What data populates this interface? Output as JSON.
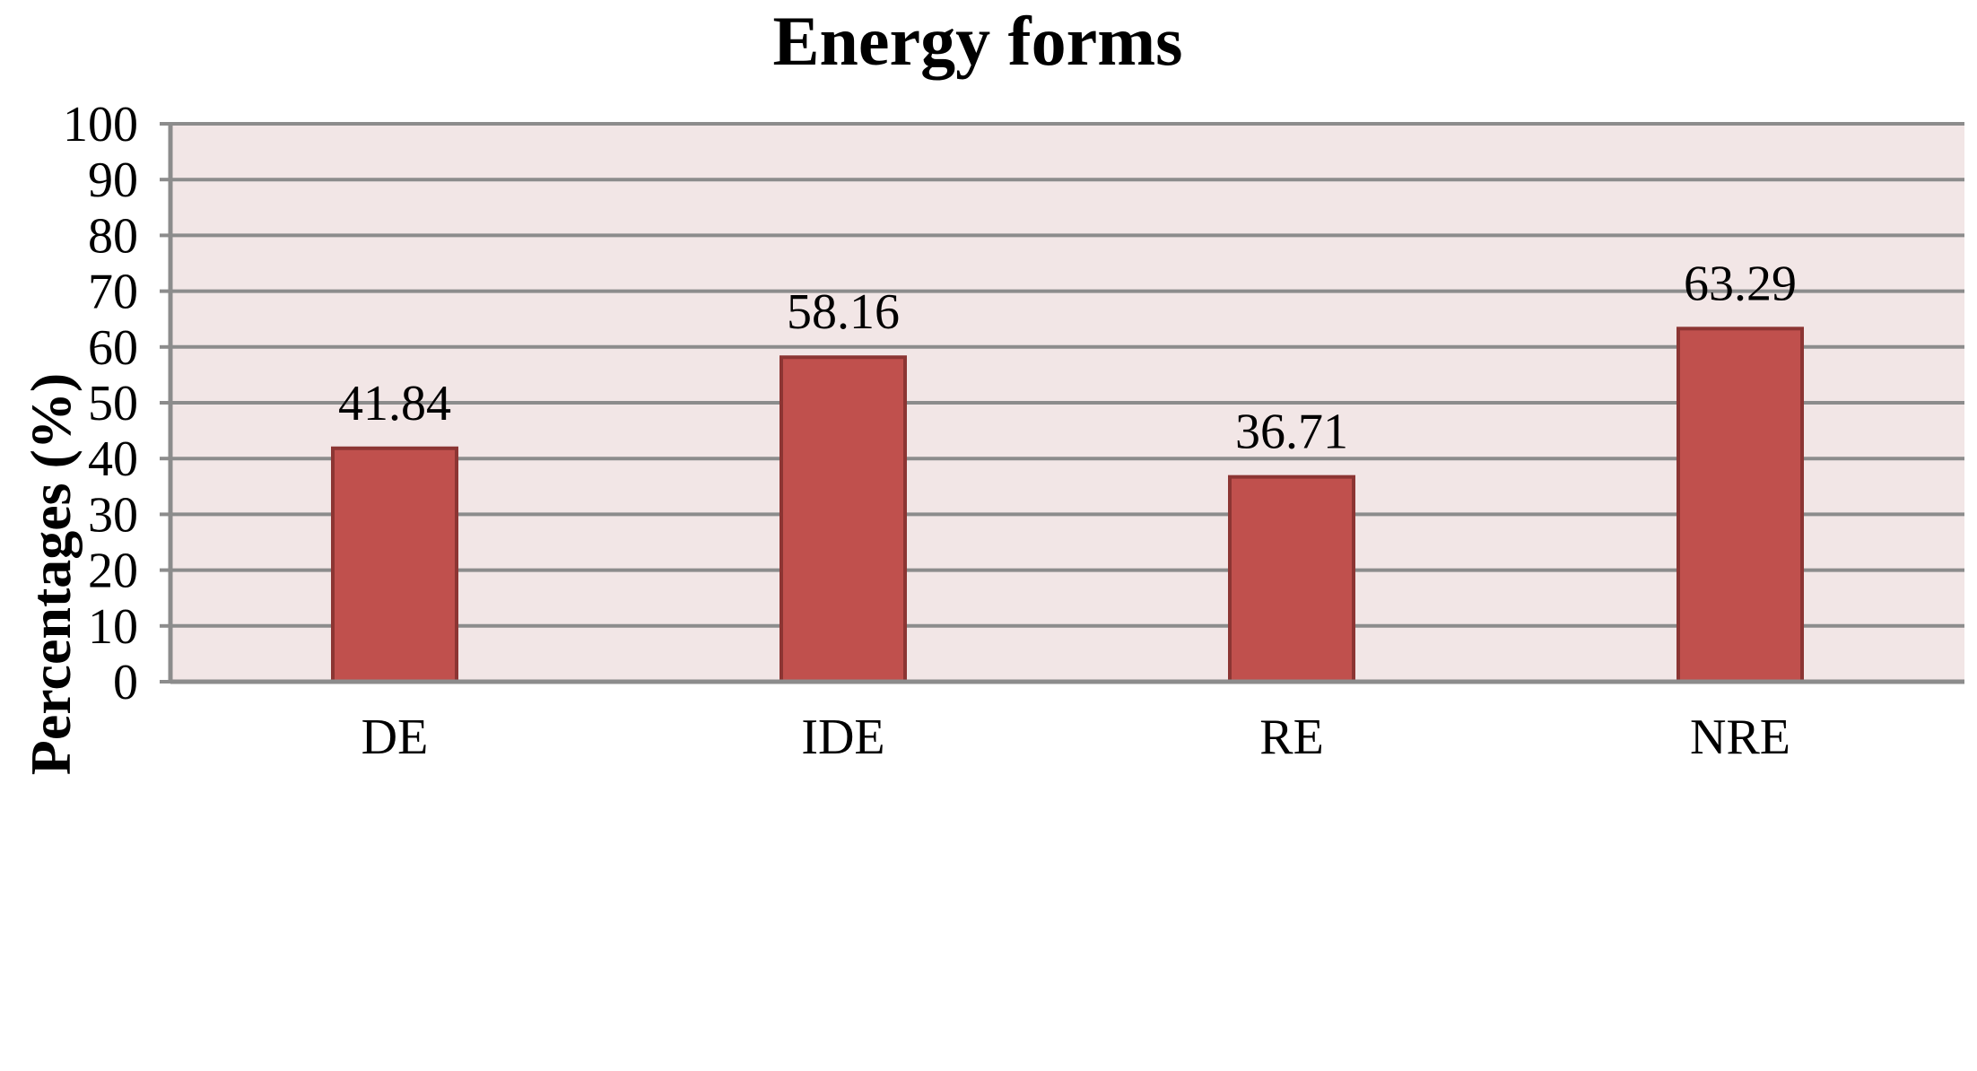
{
  "chart_data": {
    "type": "bar",
    "title": "Energy forms",
    "xlabel": "",
    "ylabel": "Percentages (%)",
    "categories": [
      "DE",
      "IDE",
      "RE",
      "NRE"
    ],
    "values": [
      41.84,
      58.16,
      36.71,
      63.29
    ],
    "data_labels": [
      "41.84",
      "58.16",
      "36.71",
      "63.29"
    ],
    "ylim": [
      0,
      100
    ],
    "yticks": [
      0,
      10,
      20,
      30,
      40,
      50,
      60,
      70,
      80,
      90,
      100
    ],
    "ytick_labels": [
      "0",
      "10",
      "20",
      "30",
      "40",
      "50",
      "60",
      "70",
      "80",
      "90",
      "100"
    ],
    "grid": true,
    "legend": "none",
    "colors": {
      "bar_fill": "#c0504d",
      "bar_edge": "#8c3533",
      "plot_background": "#f2e6e6",
      "gridline": "#8c8c8c",
      "axis": "#8c8c8c"
    }
  }
}
